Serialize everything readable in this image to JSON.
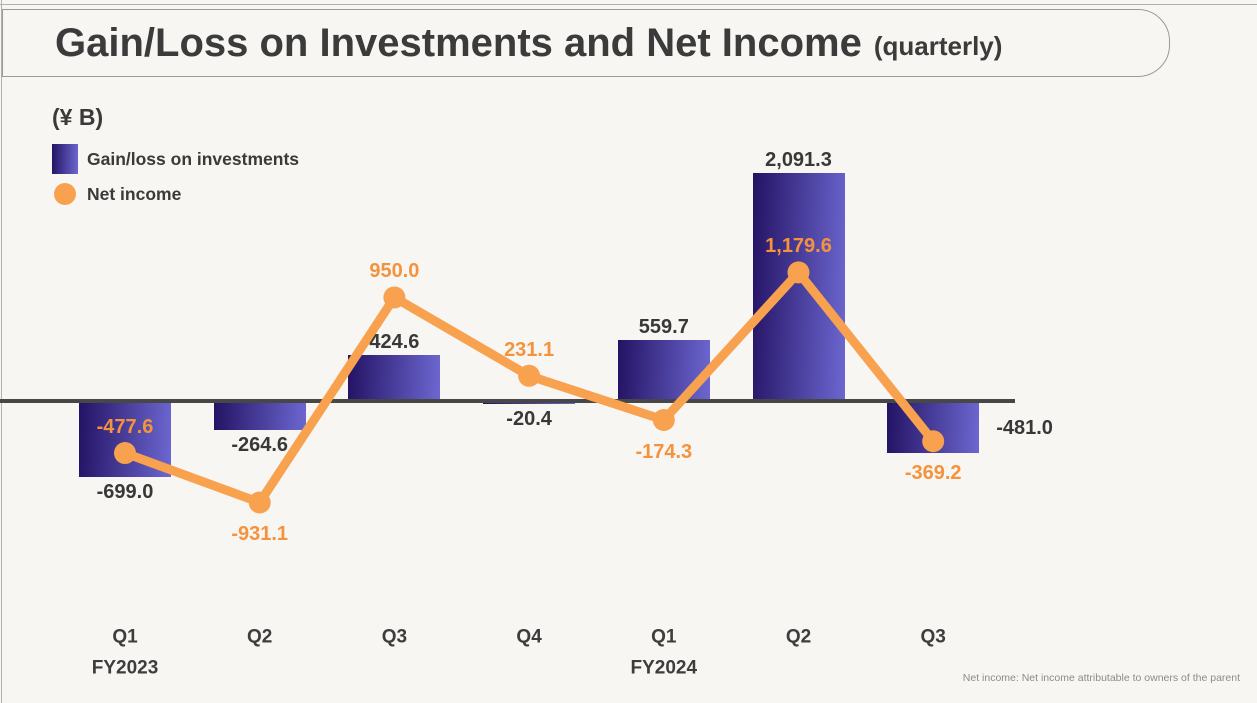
{
  "page": {
    "background": "#F7F6F3"
  },
  "header": {
    "title": "Gain/Loss on Investments and Net Income",
    "subtitle": "(quarterly)"
  },
  "legend": {
    "unit_label": "(¥ B)",
    "items": [
      {
        "label": "Gain/loss on investments",
        "swatch": "bar-gradient-swatch"
      },
      {
        "label": "Net income",
        "swatch": "orange-dot-swatch"
      }
    ]
  },
  "colors": {
    "bar_gradient_dark": "#241364",
    "bar_gradient_light": "#6C67D0",
    "line_orange": "#F8A14E",
    "orange_label": "#F5933C",
    "dark_label": "#383838",
    "axis": "#474747",
    "frame_border": "#9C9A97"
  },
  "footnote": "Net income: Net income attributable to owners of the parent",
  "chart_data": {
    "type": "combo_bar_line",
    "title": "Gain/Loss on Investments and Net Income (quarterly)",
    "unit": "¥ B",
    "categories": [
      "Q1",
      "Q2",
      "Q3",
      "Q4",
      "Q1",
      "Q2",
      "Q3"
    ],
    "fiscal_year_labels": [
      {
        "text": "FY2023",
        "category_index": 0
      },
      {
        "text": "FY2024",
        "category_index": 4
      }
    ],
    "y_axis": {
      "range_estimate": [
        -1000,
        2300
      ],
      "gridlines": false,
      "zero_line": true,
      "tick_labels_shown": false
    },
    "legend_position": "top-left",
    "series": [
      {
        "name": "Gain/loss on investments",
        "type": "bar",
        "values": [
          -699.0,
          -264.6,
          424.6,
          -20.4,
          559.7,
          2091.3,
          -481.0
        ],
        "labels": [
          "-699.0",
          "-264.6",
          "424.6",
          "-20.4",
          "559.7",
          "2,091.3",
          "-481.0"
        ],
        "label_positions": [
          "below",
          "below",
          "above",
          "below",
          "above",
          "above",
          "right"
        ]
      },
      {
        "name": "Net income",
        "type": "line",
        "values": [
          -477.6,
          -931.1,
          950.0,
          231.1,
          -174.3,
          1179.6,
          -369.2
        ],
        "labels": [
          "-477.6",
          "-931.1",
          "950.0",
          "231.1",
          "-174.3",
          "1,179.6",
          "-369.2"
        ],
        "label_positions": [
          "above",
          "below",
          "above",
          "above",
          "below",
          "above",
          "below"
        ]
      }
    ]
  }
}
